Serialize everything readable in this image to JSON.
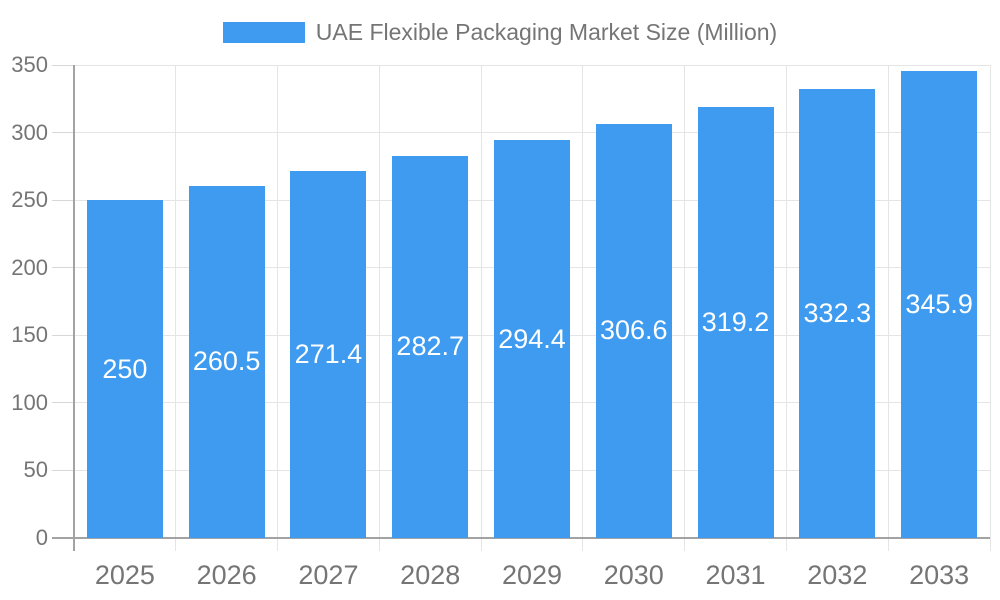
{
  "legend": {
    "label": "UAE Flexible Packaging Market Size (Million)"
  },
  "chart_data": {
    "type": "bar",
    "title": "UAE Flexible Packaging Market Size (Million)",
    "categories": [
      "2025",
      "2026",
      "2027",
      "2028",
      "2029",
      "2030",
      "2031",
      "2032",
      "2033"
    ],
    "values": [
      250,
      260.5,
      271.4,
      282.7,
      294.4,
      306.6,
      319.2,
      332.3,
      345.9
    ],
    "series_name": "UAE Flexible Packaging Market Size (Million)",
    "xlabel": "",
    "ylabel": "",
    "ylim": [
      0,
      350
    ],
    "y_ticks": [
      0,
      50,
      100,
      150,
      200,
      250,
      300,
      350
    ],
    "grid": true,
    "legend_position": "top-center",
    "colors": {
      "bar": "#3E9BEF",
      "label_text": "#757575",
      "value_text": "#FFFFFF",
      "gridline": "#E5E5E5",
      "tick": "#D8D8D8",
      "axis": "#A3A3A3",
      "background": "#FFFFFF"
    }
  }
}
